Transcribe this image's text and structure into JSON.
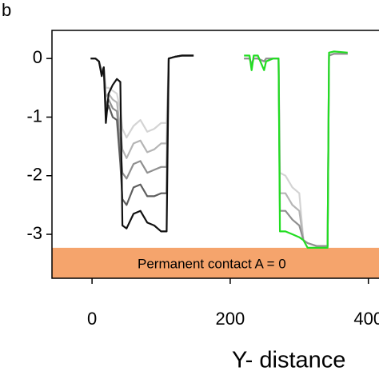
{
  "chart_data": {
    "type": "line",
    "panel_label": "b",
    "xlabel": "Y- distance",
    "xlim": [
      -58,
      420
    ],
    "ylim": [
      -3.75,
      0.48
    ],
    "xticks": [
      0,
      200,
      400
    ],
    "yticks": [
      0,
      -1,
      -2,
      -3
    ],
    "band": {
      "ylim": [
        -3.75,
        -3.23
      ],
      "color": "#f5a46c",
      "label": "Permanent contact A = 0"
    },
    "series": [
      {
        "color": "#d4d4d4",
        "x": [
          -2,
          5,
          10,
          14,
          17,
          20,
          24,
          30,
          36,
          41,
          44,
          50,
          60,
          70,
          80,
          90,
          100,
          108,
          111,
          120,
          130,
          147
        ],
        "values": [
          0,
          0,
          -0.05,
          -0.2,
          -0.15,
          -0.5,
          -0.5,
          -0.55,
          -0.6,
          -0.9,
          -1.2,
          -1.35,
          -1.15,
          -1.05,
          -1.25,
          -1.2,
          -1.1,
          -1.1,
          0,
          0.03,
          0.05,
          0.05
        ]
      },
      {
        "color": "#b5b5b5",
        "x": [
          -2,
          5,
          10,
          14,
          17,
          20,
          24,
          30,
          36,
          41,
          44,
          50,
          60,
          70,
          80,
          90,
          100,
          108,
          111,
          120,
          130,
          147
        ],
        "values": [
          0,
          0,
          -0.05,
          -0.22,
          -0.15,
          -0.65,
          -0.6,
          -0.7,
          -0.75,
          -1.2,
          -1.55,
          -1.7,
          -1.45,
          -1.4,
          -1.6,
          -1.55,
          -1.45,
          -1.45,
          0,
          0.03,
          0.05,
          0.05
        ]
      },
      {
        "color": "#909090",
        "x": [
          -2,
          5,
          10,
          14,
          17,
          20,
          24,
          30,
          36,
          41,
          44,
          50,
          60,
          70,
          80,
          90,
          100,
          108,
          111,
          120,
          130,
          147
        ],
        "values": [
          0,
          0,
          -0.05,
          -0.25,
          -0.15,
          -0.8,
          -0.7,
          -0.85,
          -0.9,
          -1.5,
          -1.95,
          -2.05,
          -1.8,
          -1.75,
          -1.95,
          -1.9,
          -1.85,
          -1.85,
          0,
          0.03,
          0.05,
          0.05
        ]
      },
      {
        "color": "#5e5e5e",
        "x": [
          -2,
          5,
          10,
          14,
          17,
          20,
          24,
          30,
          36,
          41,
          44,
          50,
          60,
          70,
          80,
          90,
          100,
          108,
          111,
          120,
          130,
          147
        ],
        "values": [
          0,
          0,
          -0.05,
          -0.28,
          -0.15,
          -0.95,
          -0.8,
          -1.0,
          -1.05,
          -1.8,
          -2.4,
          -2.5,
          -2.2,
          -2.15,
          -2.35,
          -2.35,
          -2.3,
          -2.3,
          0,
          0.03,
          0.05,
          0.05
        ]
      },
      {
        "color": "#111111",
        "x": [
          -2,
          5,
          10,
          14,
          17,
          20,
          24,
          30,
          36,
          41,
          44,
          50,
          60,
          70,
          80,
          90,
          100,
          108,
          111,
          120,
          130,
          147
        ],
        "values": [
          0,
          0,
          -0.05,
          -0.3,
          -0.15,
          -1.1,
          -0.6,
          -0.45,
          -0.35,
          -0.4,
          -2.85,
          -2.9,
          -2.65,
          -2.6,
          -2.8,
          -2.85,
          -2.95,
          -2.95,
          0,
          0.03,
          0.05,
          0.05
        ]
      },
      {
        "color": "#d4d4d4",
        "x": [
          220,
          228,
          231,
          234,
          240,
          249,
          252,
          262,
          270,
          272,
          280,
          290,
          300,
          306,
          312,
          325,
          341,
          343,
          350,
          370
        ],
        "values": [
          0,
          0,
          -0.1,
          0,
          0,
          -0.05,
          0,
          0,
          0,
          -1.95,
          -2.0,
          -2.2,
          -2.3,
          -3.1,
          -3.15,
          -3.2,
          -3.2,
          0.05,
          0.08,
          0.08
        ]
      },
      {
        "color": "#b5b5b5",
        "x": [
          220,
          228,
          231,
          234,
          240,
          249,
          252,
          262,
          270,
          272,
          280,
          290,
          300,
          306,
          312,
          325,
          341,
          343,
          350,
          370
        ],
        "values": [
          0,
          0,
          -0.1,
          0,
          0,
          -0.05,
          0,
          0,
          0,
          -2.3,
          -2.3,
          -2.5,
          -2.6,
          -3.1,
          -3.15,
          -3.2,
          -3.2,
          0.05,
          0.08,
          0.08
        ]
      },
      {
        "color": "#909090",
        "x": [
          220,
          228,
          231,
          234,
          240,
          249,
          252,
          262,
          270,
          272,
          280,
          290,
          300,
          306,
          312,
          325,
          341,
          343,
          350,
          370
        ],
        "values": [
          0,
          0,
          -0.1,
          0,
          0,
          -0.05,
          0,
          0,
          0,
          -2.6,
          -2.6,
          -2.75,
          -2.85,
          -3.1,
          -3.15,
          -3.2,
          -3.2,
          0.05,
          0.08,
          0.08
        ]
      },
      {
        "color": "#22dd22",
        "x": [
          220,
          228,
          231,
          234,
          240,
          249,
          252,
          262,
          270,
          272,
          280,
          290,
          300,
          306,
          312,
          325,
          341,
          343,
          350,
          370
        ],
        "values": [
          0.05,
          0.05,
          -0.2,
          0.05,
          0.05,
          -0.2,
          -0.05,
          0,
          0,
          -2.95,
          -2.95,
          -3.0,
          -3.05,
          -3.1,
          -3.23,
          -3.23,
          -3.23,
          0.1,
          0.12,
          0.1
        ]
      }
    ]
  }
}
